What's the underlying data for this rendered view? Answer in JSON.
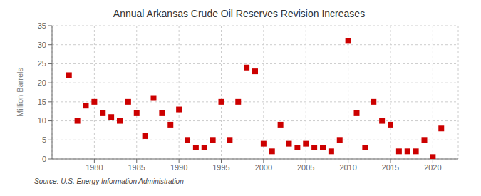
{
  "chart_data": {
    "type": "scatter",
    "title": "Annual Arkansas Crude Oil Reserves Revision Increases",
    "ylabel": "Million Barrels",
    "annotation": "Source: U.S. Energy Information Administration",
    "x": [
      1977,
      1978,
      1979,
      1980,
      1981,
      1982,
      1983,
      1984,
      1985,
      1986,
      1987,
      1988,
      1989,
      1990,
      1991,
      1992,
      1993,
      1994,
      1995,
      1996,
      1997,
      1998,
      1999,
      2000,
      2001,
      2002,
      2003,
      2004,
      2005,
      2006,
      2007,
      2008,
      2009,
      2010,
      2011,
      2012,
      2013,
      2014,
      2015,
      2016,
      2017,
      2018,
      2019,
      2020,
      2021
    ],
    "values": [
      22,
      10,
      14,
      15,
      12,
      11,
      10,
      15,
      12,
      6,
      16,
      12,
      9,
      13,
      5,
      3,
      3,
      5,
      15,
      5,
      15,
      24,
      23,
      4,
      2,
      9,
      4,
      3,
      4,
      3,
      3,
      2,
      5,
      31,
      12,
      3,
      15,
      10,
      9,
      2,
      2,
      2,
      5,
      0.5,
      8
    ],
    "color": "#cc0000",
    "marker": "square",
    "xlim": [
      1975,
      2023
    ],
    "xticks": [
      1980,
      1985,
      1990,
      1995,
      2000,
      2005,
      2010,
      2015,
      2020
    ],
    "ylim": [
      0,
      35
    ],
    "yticks": [
      0,
      5,
      10,
      15,
      20,
      25,
      30,
      35
    ],
    "grid": true
  }
}
